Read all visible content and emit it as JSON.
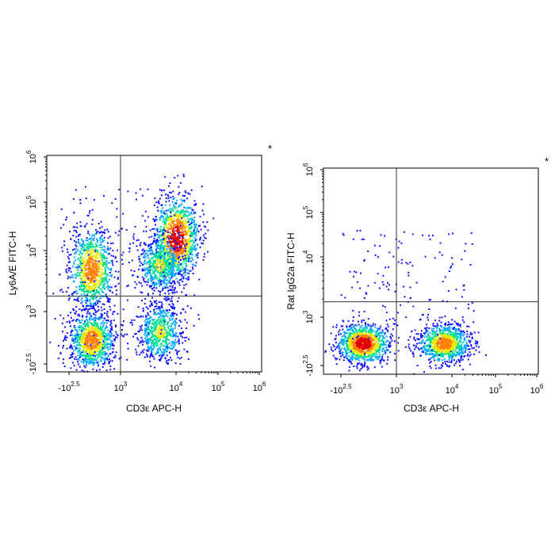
{
  "chart_data": [
    {
      "type": "scatter",
      "plot_style": "flow cytometry density dot plot (pseudocolor)",
      "xlabel": "CD3ε APC-H",
      "ylabel": "Ly6A/E FITC-H",
      "x_scale": "biexponential (log above ~10^3)",
      "y_scale": "biexponential (log above ~10^3)",
      "xlim": [
        -316,
        1000000
      ],
      "ylim": [
        -316,
        1000000
      ],
      "x_ticks": [
        {
          "base": "-10",
          "exp": "2.5",
          "value": -316
        },
        {
          "base": "10",
          "exp": "3",
          "value": 1000
        },
        {
          "base": "10",
          "exp": "4",
          "value": 10000
        },
        {
          "base": "10",
          "exp": "5",
          "value": 100000
        },
        {
          "base": "10",
          "exp": "6",
          "value": 1000000
        }
      ],
      "y_ticks": [
        {
          "base": "-10",
          "exp": "2.5",
          "value": -316
        },
        {
          "base": "10",
          "exp": "3",
          "value": 1000
        },
        {
          "base": "10",
          "exp": "4",
          "value": 10000
        },
        {
          "base": "10",
          "exp": "5",
          "value": 100000
        },
        {
          "base": "10",
          "exp": "6",
          "value": 1000000
        }
      ],
      "quadrant_gate": {
        "x": 1000,
        "y": 1800
      },
      "populations": [
        {
          "x": 250,
          "y": 5000,
          "density": "high"
        },
        {
          "x": 250,
          "y": 300,
          "density": "high"
        },
        {
          "x": 10000,
          "y": 18000,
          "density": "highest"
        },
        {
          "x": 5000,
          "y": 6000,
          "density": "medium"
        },
        {
          "x": 5000,
          "y": 500,
          "density": "medium"
        }
      ],
      "annotation": "*",
      "color_scale": [
        "#1010ff",
        "#00a8ff",
        "#00e090",
        "#e8e800",
        "#ff8000",
        "#e00000"
      ]
    },
    {
      "type": "scatter",
      "plot_style": "flow cytometry density dot plot (pseudocolor)",
      "xlabel": "CD3ε APC-H",
      "ylabel": "Rat IgG2a FITC-H",
      "x_scale": "biexponential (log above ~10^3)",
      "y_scale": "biexponential (log above ~10^3)",
      "xlim": [
        -316,
        1000000
      ],
      "ylim": [
        -316,
        1000000
      ],
      "x_ticks": [
        {
          "base": "-10",
          "exp": "2.5",
          "value": -316
        },
        {
          "base": "10",
          "exp": "3",
          "value": 1000
        },
        {
          "base": "10",
          "exp": "4",
          "value": 10000
        },
        {
          "base": "10",
          "exp": "5",
          "value": 100000
        },
        {
          "base": "10",
          "exp": "6",
          "value": 1000000
        }
      ],
      "y_ticks": [
        {
          "base": "-10",
          "exp": "2.5",
          "value": -316
        },
        {
          "base": "10",
          "exp": "3",
          "value": 1000
        },
        {
          "base": "10",
          "exp": "4",
          "value": 10000
        },
        {
          "base": "10",
          "exp": "5",
          "value": 100000
        },
        {
          "base": "10",
          "exp": "6",
          "value": 1000000
        }
      ],
      "quadrant_gate": {
        "x": 1000,
        "y": 1800
      },
      "populations": [
        {
          "x": 200,
          "y": 300,
          "density": "highest"
        },
        {
          "x": 7000,
          "y": 300,
          "density": "high"
        }
      ],
      "annotation": "*",
      "color_scale": [
        "#1010ff",
        "#00a8ff",
        "#00e090",
        "#e8e800",
        "#ff8000",
        "#e00000"
      ]
    }
  ]
}
